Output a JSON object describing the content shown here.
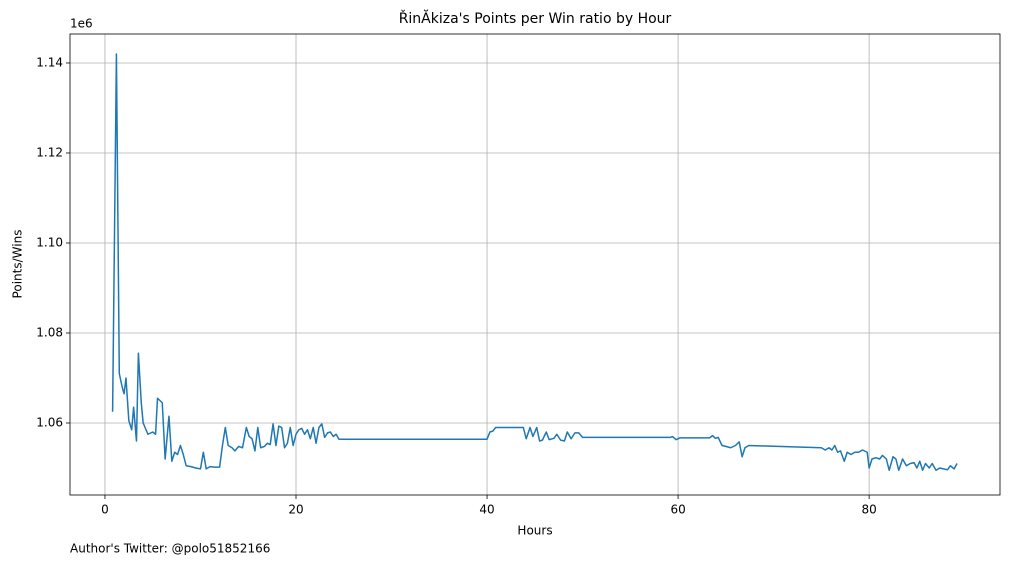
{
  "chart_data": {
    "type": "line",
    "title": "ŘinĂkiza's Points per Win ratio by Hour",
    "xlabel": "Hours",
    "ylabel": "Points/Wins",
    "y_offset_label": "1e6",
    "footer": "Author's Twitter: @polo51852166",
    "color": "#1f77b4",
    "grid": true,
    "xlim": [
      -3.66,
      93.7
    ],
    "ylim": [
      1044000,
      1146440
    ],
    "xticks": [
      0,
      20,
      40,
      60,
      80
    ],
    "yticks": [
      {
        "value": 1060000,
        "label": "1.06"
      },
      {
        "value": 1080000,
        "label": "1.08"
      },
      {
        "value": 1100000,
        "label": "1.10"
      },
      {
        "value": 1120000,
        "label": "1.12"
      },
      {
        "value": 1140000,
        "label": "1.14"
      }
    ],
    "x": [
      0.8,
      1.2,
      1.5,
      1.8,
      2.0,
      2.2,
      2.5,
      2.8,
      3.0,
      3.3,
      3.5,
      3.8,
      4.0,
      4.5,
      5.0,
      5.3,
      5.5,
      6.0,
      6.3,
      6.7,
      7.0,
      7.3,
      7.6,
      7.9,
      8.2,
      8.5,
      9.0,
      9.5,
      10.0,
      10.3,
      10.6,
      11.0,
      11.5,
      12.0,
      12.3,
      12.6,
      12.9,
      13.3,
      13.6,
      14.0,
      14.4,
      14.8,
      15.1,
      15.4,
      15.7,
      16.0,
      16.3,
      16.7,
      17.0,
      17.3,
      17.6,
      17.9,
      18.2,
      18.5,
      18.8,
      19.1,
      19.4,
      19.7,
      20.0,
      20.3,
      20.6,
      20.9,
      21.2,
      21.5,
      21.8,
      22.1,
      22.4,
      22.7,
      23.0,
      23.3,
      23.6,
      23.9,
      24.2,
      24.5,
      40.0,
      40.3,
      40.6,
      40.9,
      43.8,
      44.1,
      44.5,
      44.8,
      45.2,
      45.5,
      45.8,
      46.2,
      46.5,
      47.0,
      47.3,
      47.7,
      48.1,
      48.4,
      48.8,
      49.2,
      49.6,
      50.0,
      59.2,
      59.4,
      59.8,
      60.2,
      63.3,
      63.6,
      63.9,
      64.2,
      64.6,
      65.0,
      65.5,
      66.0,
      66.4,
      66.7,
      67.0,
      67.4,
      75.0,
      75.4,
      75.8,
      76.1,
      76.4,
      76.7,
      77.0,
      77.4,
      77.7,
      78.1,
      78.5,
      78.9,
      79.3,
      79.8,
      80.0,
      80.3,
      80.7,
      81.1,
      81.4,
      81.8,
      82.1,
      82.5,
      82.8,
      83.1,
      83.5,
      83.9,
      84.3,
      84.7,
      85.0,
      85.3,
      85.6,
      85.9,
      86.3,
      86.6,
      87.0,
      87.4,
      87.8,
      88.2,
      88.5,
      88.9,
      89.2
    ],
    "values": [
      1062500,
      1142000,
      1071000,
      1068000,
      1066500,
      1070000,
      1060500,
      1058500,
      1063500,
      1056000,
      1075500,
      1064500,
      1060000,
      1057500,
      1058000,
      1057500,
      1065500,
      1064500,
      1052000,
      1061500,
      1051500,
      1053500,
      1053000,
      1055000,
      1053000,
      1050500,
      1050300,
      1050000,
      1049800,
      1053500,
      1049800,
      1050300,
      1050200,
      1050200,
      1055000,
      1059000,
      1055000,
      1054500,
      1053800,
      1054800,
      1054500,
      1059000,
      1057000,
      1056500,
      1053800,
      1059000,
      1054500,
      1054800,
      1055500,
      1055200,
      1059800,
      1055000,
      1059300,
      1059000,
      1054500,
      1055500,
      1059000,
      1055000,
      1057500,
      1058500,
      1058800,
      1057500,
      1058500,
      1056500,
      1059000,
      1055500,
      1059000,
      1059800,
      1056800,
      1057800,
      1058000,
      1057000,
      1057500,
      1056400,
      1056400,
      1058000,
      1058200,
      1059000,
      1059000,
      1056500,
      1059000,
      1057000,
      1059000,
      1056000,
      1056200,
      1058000,
      1056300,
      1056600,
      1057500,
      1056200,
      1056000,
      1058000,
      1056500,
      1057800,
      1057800,
      1056800,
      1056800,
      1057000,
      1056300,
      1056700,
      1056700,
      1057200,
      1056600,
      1056800,
      1055000,
      1054800,
      1054500,
      1055000,
      1055800,
      1052500,
      1054500,
      1055000,
      1054500,
      1054000,
      1054500,
      1054000,
      1055000,
      1053500,
      1053800,
      1051500,
      1053500,
      1053000,
      1053500,
      1053500,
      1054000,
      1053500,
      1050000,
      1052000,
      1052300,
      1052000,
      1052800,
      1052000,
      1049500,
      1052500,
      1052000,
      1049500,
      1052000,
      1050500,
      1051000,
      1051200,
      1050000,
      1051500,
      1049500,
      1051000,
      1050000,
      1051000,
      1049500,
      1050000,
      1049800,
      1049600,
      1050500,
      1049800,
      1051000
    ]
  }
}
